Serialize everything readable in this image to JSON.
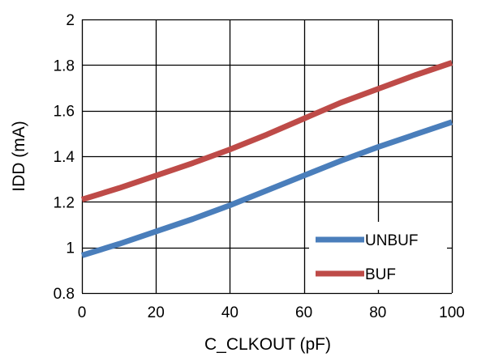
{
  "chart_data": {
    "type": "line",
    "xlabel": "C_CLKOUT (pF)",
    "ylabel": "IDD (mA)",
    "xlim": [
      0,
      100
    ],
    "ylim": [
      0.8,
      2
    ],
    "xticks": [
      0,
      20,
      40,
      60,
      80,
      100
    ],
    "yticks": [
      0.8,
      1,
      1.2,
      1.4,
      1.6,
      1.8,
      2
    ],
    "xtick_labels": [
      "0",
      "20",
      "40",
      "60",
      "80",
      "100"
    ],
    "ytick_labels": [
      "0.8",
      "1",
      "1.2",
      "1.4",
      "1.6",
      "1.8",
      "2"
    ],
    "grid": true,
    "legend_position": "bottom-right",
    "series": [
      {
        "name": "UNBUF",
        "color": "#4a7ebb",
        "x": [
          0,
          10,
          20,
          30,
          40,
          50,
          60,
          70,
          80,
          90,
          100
        ],
        "y": [
          0.965,
          1.015,
          1.07,
          1.125,
          1.185,
          1.25,
          1.315,
          1.38,
          1.44,
          1.495,
          1.55
        ]
      },
      {
        "name": "BUF",
        "color": "#be4b48",
        "x": [
          0,
          10,
          20,
          30,
          40,
          50,
          60,
          70,
          80,
          90,
          100
        ],
        "y": [
          1.21,
          1.26,
          1.315,
          1.37,
          1.43,
          1.495,
          1.565,
          1.635,
          1.695,
          1.755,
          1.81
        ]
      }
    ]
  }
}
